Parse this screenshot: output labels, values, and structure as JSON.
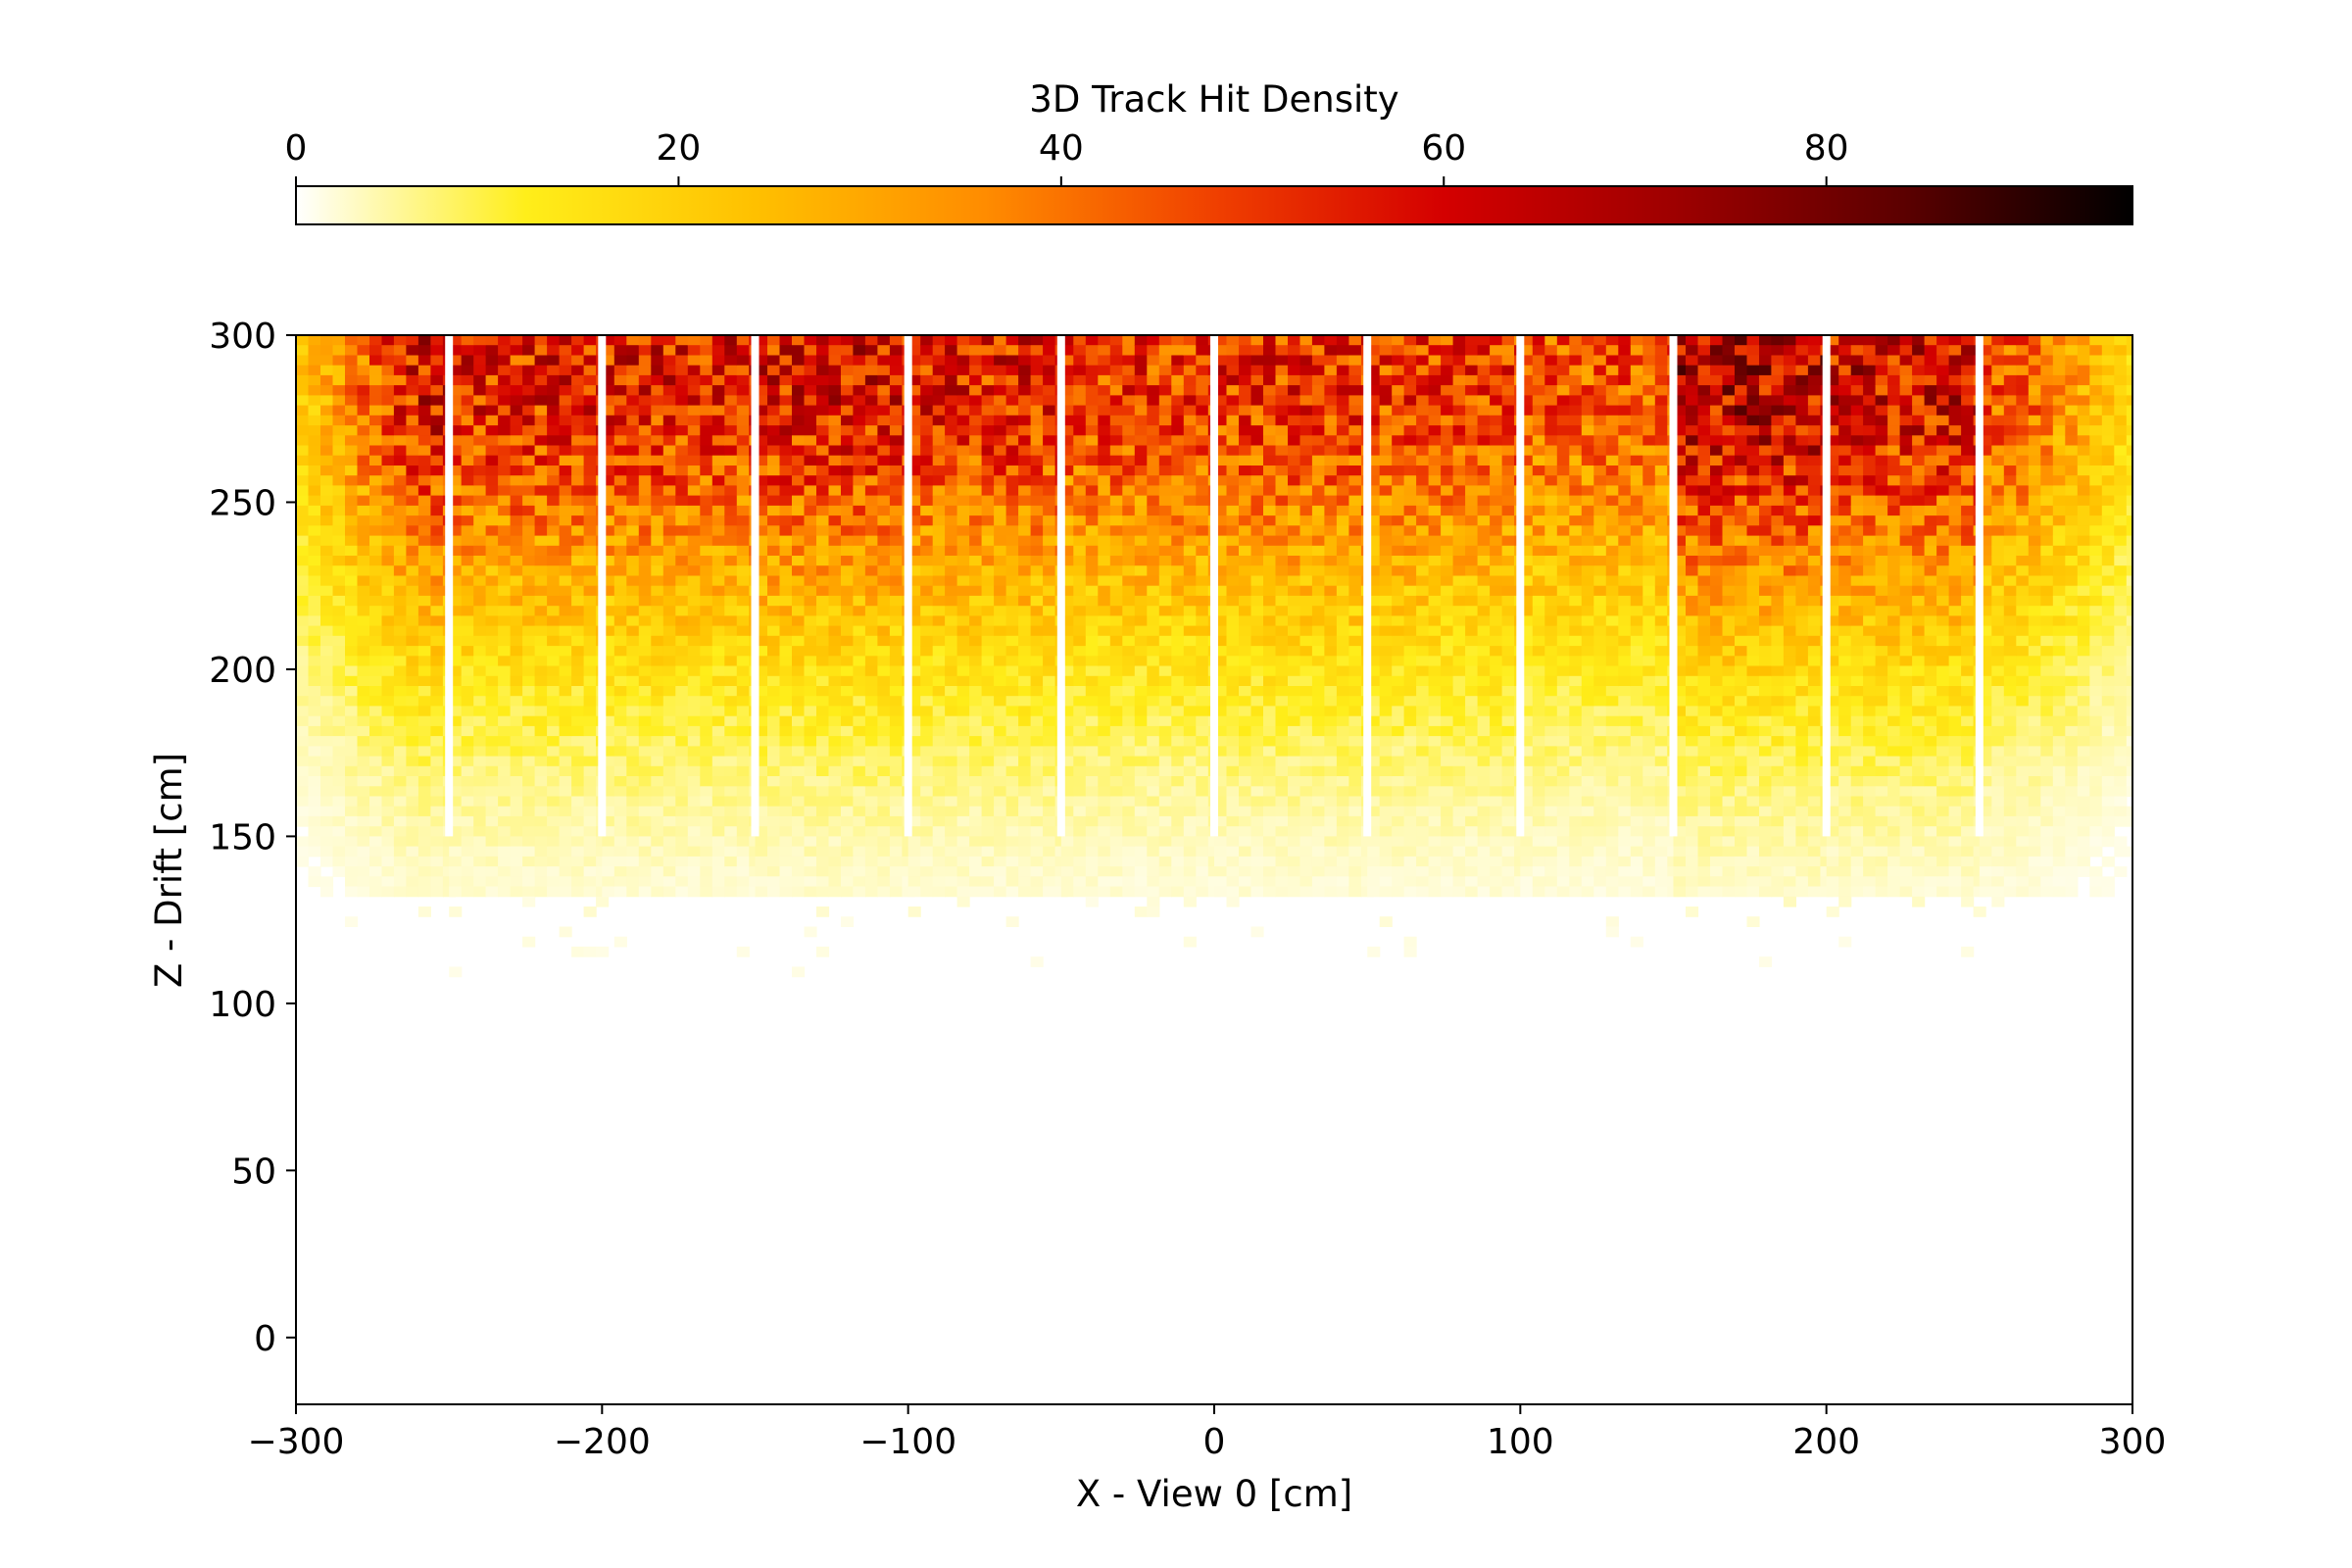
{
  "chart_data": {
    "type": "heatmap",
    "title": "",
    "xlabel": "X - View 0 [cm]",
    "ylabel": "Z - Drift [cm]",
    "xlim": [
      -300,
      300
    ],
    "ylim": [
      -20,
      300
    ],
    "xticks": [
      -300,
      -200,
      -100,
      0,
      100,
      200,
      300
    ],
    "xtick_labels": [
      "−300",
      "−200",
      "−100",
      "0",
      "100",
      "200",
      "300"
    ],
    "yticks": [
      0,
      50,
      100,
      150,
      200,
      250,
      300
    ],
    "ytick_labels": [
      "0",
      "50",
      "100",
      "150",
      "200",
      "250",
      "300"
    ],
    "grid": false,
    "colorbar": {
      "label": "3D Track Hit Density",
      "position": "top",
      "range": [
        0,
        96
      ],
      "ticks": [
        0,
        20,
        40,
        60,
        80
      ],
      "tick_labels": [
        "0",
        "20",
        "40",
        "60",
        "80"
      ],
      "colormap": "hot_r",
      "stops": [
        "#ffffff",
        "#ffee1a",
        "#ffc000",
        "#ff8c00",
        "#f04000",
        "#d40000",
        "#9e0000",
        "#5c0000",
        "#000000"
      ]
    },
    "module_boundaries_x": [
      -250,
      -200,
      -150,
      -100,
      -50,
      0,
      50,
      100,
      150,
      200,
      250
    ],
    "density_summary": {
      "peak_density_near_z": 290,
      "density_fades_below_z": 150,
      "regions": [
        {
          "x_range": [
            -300,
            -250
          ],
          "density_at_top": 60,
          "lower_extent_z": 130
        },
        {
          "x_range": [
            -250,
            -200
          ],
          "density_at_top": 55,
          "lower_extent_z": 130
        },
        {
          "x_range": [
            -200,
            -150
          ],
          "density_at_top": 55,
          "lower_extent_z": 130
        },
        {
          "x_range": [
            -150,
            -100
          ],
          "density_at_top": 58,
          "lower_extent_z": 130
        },
        {
          "x_range": [
            -100,
            -50
          ],
          "density_at_top": 55,
          "lower_extent_z": 130
        },
        {
          "x_range": [
            -50,
            0
          ],
          "density_at_top": 50,
          "lower_extent_z": 130
        },
        {
          "x_range": [
            0,
            50
          ],
          "density_at_top": 52,
          "lower_extent_z": 130
        },
        {
          "x_range": [
            50,
            100
          ],
          "density_at_top": 50,
          "lower_extent_z": 130
        },
        {
          "x_range": [
            100,
            150
          ],
          "density_at_top": 45,
          "lower_extent_z": 130
        },
        {
          "x_range": [
            150,
            200
          ],
          "density_at_top": 65,
          "lower_extent_z": 130
        },
        {
          "x_range": [
            200,
            250
          ],
          "density_at_top": 60,
          "lower_extent_z": 130
        },
        {
          "x_range": [
            250,
            300
          ],
          "density_at_top": 45,
          "lower_extent_z": 130
        }
      ]
    }
  }
}
